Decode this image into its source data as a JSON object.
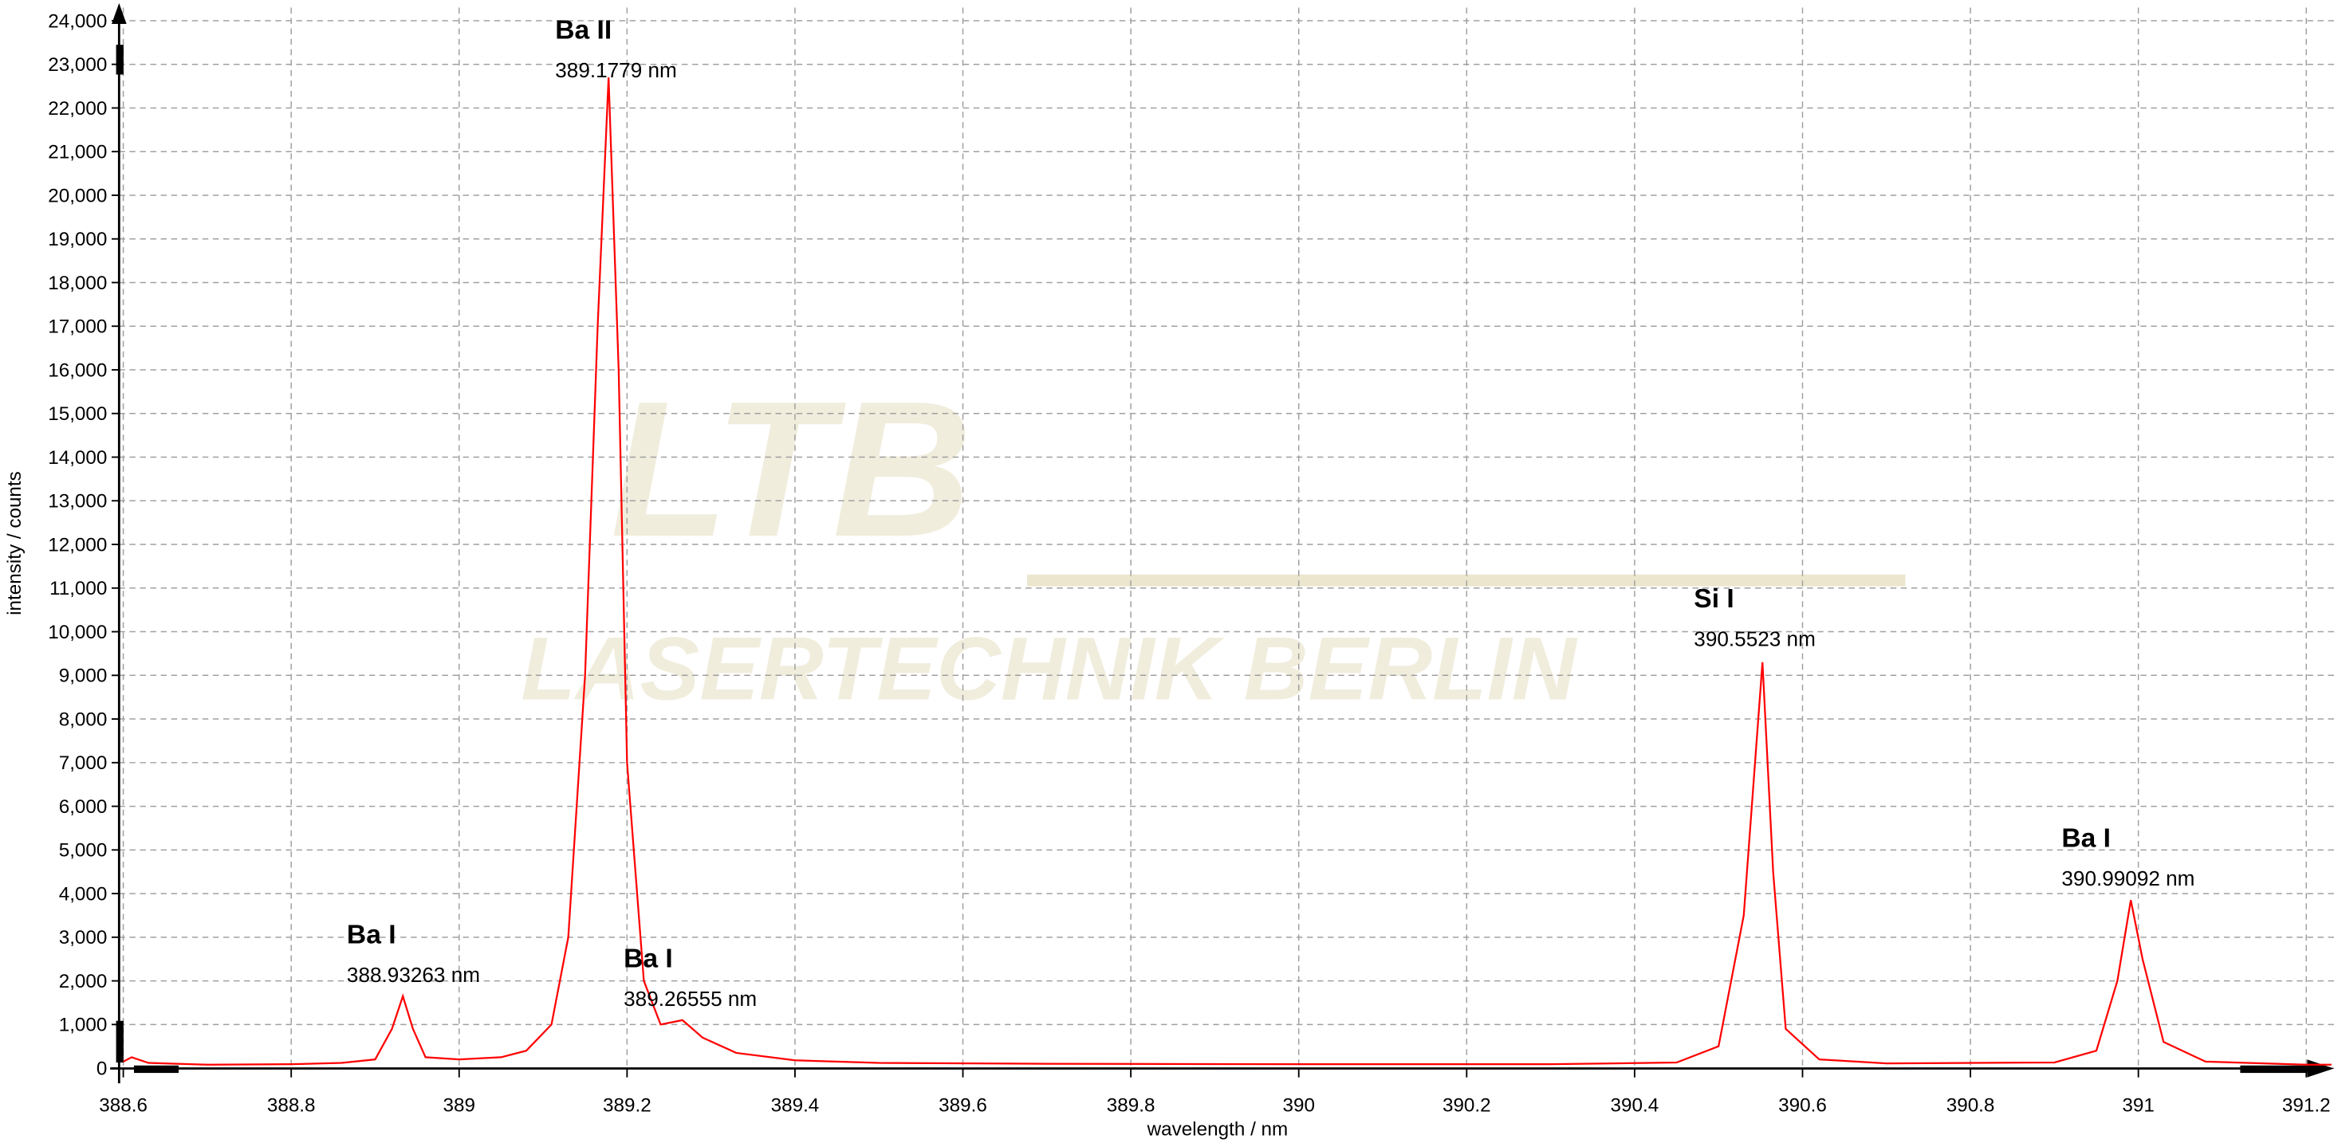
{
  "chart_data": {
    "type": "line",
    "xlabel": "wavelength / nm",
    "ylabel": "intensity / counts",
    "watermark": [
      "LTB",
      "LASERTECHNIK BERLIN"
    ],
    "xlim": [
      388.595,
      391.233
    ],
    "ylim": [
      -450,
      24300
    ],
    "xticks": [
      388.6,
      388.8,
      389,
      389.2,
      389.4,
      389.6,
      389.8,
      390,
      390.2,
      390.4,
      390.6,
      390.8,
      391,
      391.2
    ],
    "yticks": [
      0,
      {
        "value": 1000,
        "label": "1,000"
      },
      {
        "value": 2000,
        "label": "2,000"
      },
      {
        "value": 3000,
        "label": "3,000"
      },
      {
        "value": 4000,
        "label": "4,000"
      },
      {
        "value": 5000,
        "label": "5,000"
      },
      {
        "value": 6000,
        "label": "6,000"
      },
      {
        "value": 7000,
        "label": "7,000"
      },
      {
        "value": 8000,
        "label": "8,000"
      },
      {
        "value": 9000,
        "label": "9,000"
      },
      {
        "value": 10000,
        "label": "10,000"
      },
      {
        "value": 11000,
        "label": "11,000"
      },
      {
        "value": 12000,
        "label": "12,000"
      },
      {
        "value": 13000,
        "label": "13,000"
      },
      {
        "value": 14000,
        "label": "14,000"
      },
      {
        "value": 15000,
        "label": "15,000"
      },
      {
        "value": 16000,
        "label": "16,000"
      },
      {
        "value": 17000,
        "label": "17,000"
      },
      {
        "value": 18000,
        "label": "18,000"
      },
      {
        "value": 19000,
        "label": "19,000"
      },
      {
        "value": 20000,
        "label": "20,000"
      },
      {
        "value": 21000,
        "label": "21,000"
      },
      {
        "value": 22000,
        "label": "22,000"
      },
      {
        "value": 23000,
        "label": "23,000"
      },
      {
        "value": 24000,
        "label": "24,000"
      }
    ],
    "grid": true,
    "x": [
      388.6,
      388.61,
      388.63,
      388.7,
      388.8,
      388.86,
      388.9,
      388.92,
      388.933,
      388.945,
      388.96,
      389.0,
      389.05,
      389.08,
      389.11,
      389.13,
      389.15,
      389.165,
      389.178,
      389.19,
      389.2,
      389.22,
      389.24,
      389.266,
      389.29,
      389.33,
      389.4,
      389.5,
      389.7,
      390.0,
      390.3,
      390.45,
      390.5,
      390.53,
      390.5523,
      390.565,
      390.58,
      390.62,
      390.7,
      390.9,
      390.95,
      390.975,
      390.991,
      391.005,
      391.03,
      391.08,
      391.2,
      391.23
    ],
    "series": [
      {
        "color": "#ff0000",
        "values": [
          150,
          250,
          120,
          80,
          90,
          120,
          200,
          900,
          1650,
          900,
          250,
          200,
          250,
          400,
          1000,
          3000,
          9000,
          17000,
          22700,
          16000,
          7000,
          2000,
          1000,
          1100,
          700,
          350,
          180,
          120,
          100,
          90,
          90,
          130,
          500,
          3500,
          9300,
          4500,
          900,
          200,
          110,
          130,
          400,
          2000,
          3850,
          2500,
          600,
          150,
          80,
          80
        ]
      }
    ],
    "annotations": [
      {
        "label": "Ba II",
        "text": "389.1779 nm"
      },
      {
        "label": "Ba I",
        "text": "388.93263 nm"
      },
      {
        "label": "Ba I",
        "text": "389.26555 nm"
      },
      {
        "label": "Si I",
        "text": "390.5523 nm"
      },
      {
        "label": "Ba I",
        "text": "390.99092 nm"
      }
    ]
  }
}
